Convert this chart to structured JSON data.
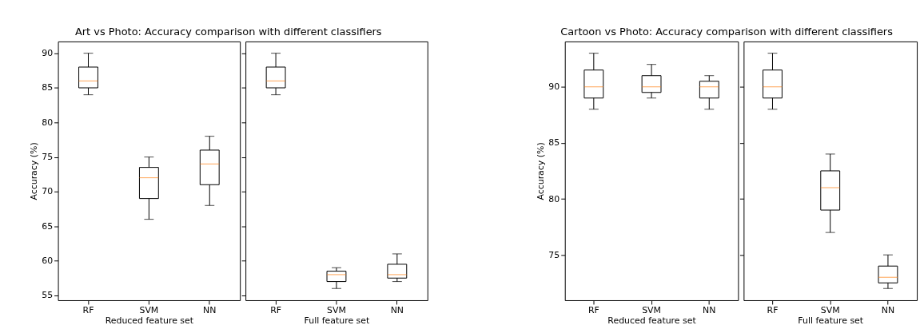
{
  "chart_data": [
    {
      "type": "box",
      "title": "Art vs Photo: Accuracy comparison with different classifiers",
      "xlabel": "Reduced feature set",
      "ylabel": "Accuracy (%)",
      "categories": [
        "RF",
        "SVM",
        "NN"
      ],
      "ylim": [
        54.3,
        91.7
      ],
      "yticks": [
        55,
        60,
        65,
        70,
        75,
        80,
        85,
        90
      ],
      "grid": false,
      "color": "#ff7f0e",
      "boxes": [
        {
          "low": 84,
          "q1": 85,
          "median": 86,
          "q3": 88,
          "high": 90
        },
        {
          "low": 66,
          "q1": 69,
          "median": 72,
          "q3": 73.5,
          "high": 75
        },
        {
          "low": 68,
          "q1": 71,
          "median": 74,
          "q3": 76,
          "high": 78
        }
      ]
    },
    {
      "type": "box",
      "xlabel": "Full feature set",
      "categories": [
        "RF",
        "SVM",
        "NN"
      ],
      "ylim": [
        54.3,
        91.7
      ],
      "yticks": [
        55,
        60,
        65,
        70,
        75,
        80,
        85,
        90
      ],
      "tick_labels": "x",
      "grid": false,
      "color": "#ff7f0e",
      "boxes": [
        {
          "low": 84,
          "q1": 85,
          "median": 86,
          "q3": 88,
          "high": 90
        },
        {
          "low": 56,
          "q1": 57,
          "median": 58,
          "q3": 58.5,
          "high": 59
        },
        {
          "low": 57,
          "q1": 57.5,
          "median": 58,
          "q3": 59.5,
          "high": 61
        }
      ]
    },
    {
      "type": "box",
      "title": "Cartoon vs Photo: Accuracy comparison with different classifiers",
      "xlabel": "Reduced feature set",
      "ylabel": "Accuracy (%)",
      "categories": [
        "RF",
        "SVM",
        "NN"
      ],
      "ylim": [
        70.95,
        94.05
      ],
      "yticks": [
        75,
        80,
        85,
        90
      ],
      "grid": false,
      "color": "#ff7f0e",
      "boxes": [
        {
          "low": 88,
          "q1": 89,
          "median": 90,
          "q3": 91.5,
          "high": 93
        },
        {
          "low": 89,
          "q1": 89.5,
          "median": 90,
          "q3": 91,
          "high": 92
        },
        {
          "low": 88,
          "q1": 89,
          "median": 90,
          "q3": 90.5,
          "high": 91
        }
      ]
    },
    {
      "type": "box",
      "xlabel": "Full feature set",
      "categories": [
        "RF",
        "SVM",
        "NN"
      ],
      "ylim": [
        70.95,
        94.05
      ],
      "yticks": [
        75,
        80,
        85,
        90
      ],
      "tick_labels": "x",
      "grid": false,
      "color": "#ff7f0e",
      "boxes": [
        {
          "low": 88,
          "q1": 89,
          "median": 90,
          "q3": 91.5,
          "high": 93
        },
        {
          "low": 77,
          "q1": 79,
          "median": 81,
          "q3": 82.5,
          "high": 84
        },
        {
          "low": 72,
          "q1": 72.5,
          "median": 73,
          "q3": 74,
          "high": 75
        }
      ]
    }
  ]
}
